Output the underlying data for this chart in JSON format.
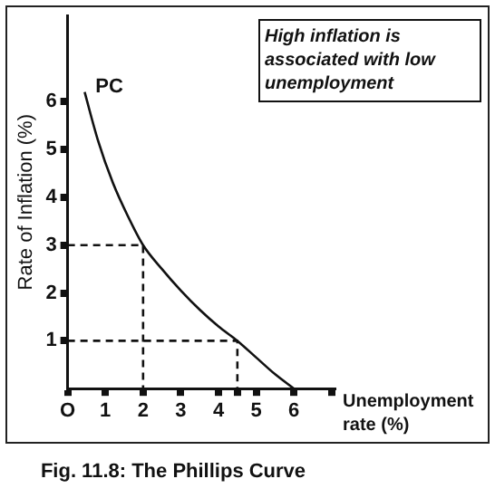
{
  "chart_data": {
    "type": "line",
    "title": "Fig. 11.8: The Phillips Curve",
    "xlabel": "Unemployment rate (%)",
    "ylabel": "Rate of Inflation (%)",
    "series": [
      {
        "color": "#111111",
        "line_style": "solid",
        "x": [
          0.45,
          0.8,
          1.2,
          1.6,
          2,
          2.5,
          3,
          3.5,
          4,
          4.5,
          5,
          5.5,
          6
        ],
        "values": [
          6.2,
          5.2,
          4.3,
          3.6,
          3,
          2.5,
          2.05,
          1.65,
          1.3,
          1,
          0.65,
          0.3,
          0
        ]
      },
      {
        "color": "#111111",
        "line_style": "dashed",
        "x": [
          0,
          2,
          2
        ],
        "values": [
          3,
          3,
          0
        ]
      },
      {
        "color": "#111111",
        "line_style": "dashed",
        "x": [
          0,
          4.5,
          4.5
        ],
        "values": [
          1,
          1,
          0
        ]
      }
    ],
    "xlim": [
      0,
      7.1
    ],
    "ylim": [
      0,
      7.8
    ],
    "xticks": [
      {
        "value": 0,
        "label": "O"
      },
      1,
      2,
      3,
      {
        "value": 4.5,
        "label": null
      },
      4,
      5,
      6,
      {
        "value": 7,
        "label": null
      }
    ],
    "yticks": [
      1,
      2,
      3,
      4,
      5,
      6
    ],
    "grid": false,
    "legend": false,
    "annotations": [
      {
        "text": "PC",
        "x": 0.45,
        "y": 6.2
      },
      "High inflation is associated with low unemployment"
    ]
  }
}
